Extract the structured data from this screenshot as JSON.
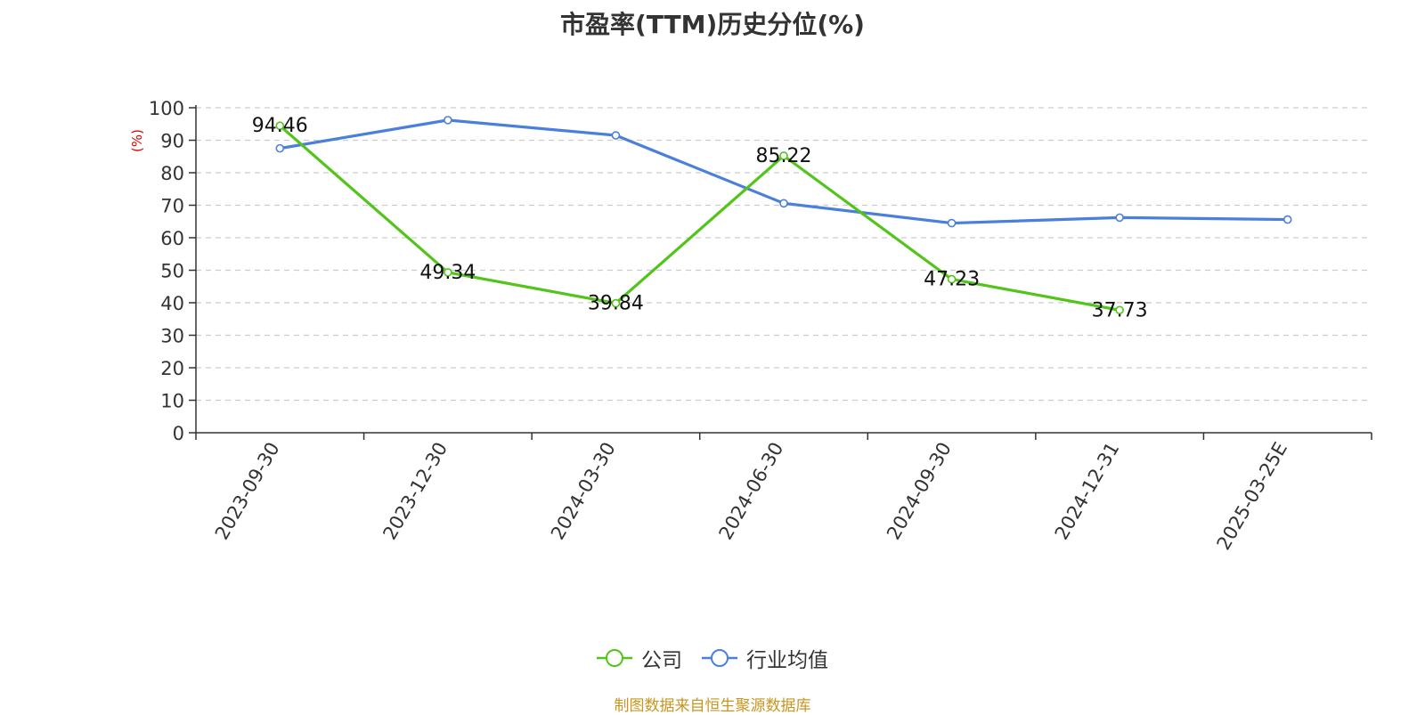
{
  "chart_data": {
    "type": "line",
    "title": "市盈率(TTM)历史分位(%)",
    "ylabel": "(%)",
    "xlabel": "",
    "categories": [
      "2023-09-30",
      "2023-12-30",
      "2024-03-30",
      "2024-06-30",
      "2024-09-30",
      "2024-12-31",
      "2025-03-25E"
    ],
    "ylim": [
      0,
      100
    ],
    "yticks": [
      0,
      10,
      20,
      30,
      40,
      50,
      60,
      70,
      80,
      90,
      100
    ],
    "grid": true,
    "legend_position": "bottom",
    "series": [
      {
        "name": "公司",
        "color": "#52c41a",
        "values": [
          94.46,
          49.34,
          39.84,
          85.22,
          47.23,
          37.73,
          null
        ],
        "labels": [
          "94.46",
          "49.34",
          "39.84",
          "85.22",
          "47.23",
          "37.73",
          null
        ]
      },
      {
        "name": "行业均值",
        "color": "#4a7fdc",
        "values": [
          87.5,
          96.2,
          91.5,
          70.6,
          64.5,
          66.2,
          65.6
        ],
        "labels": null
      }
    ]
  },
  "source_note": "制图数据来自恒生聚源数据库",
  "colors": {
    "axis": "#333333",
    "grid": "#cccccc",
    "ylabel": "#e00000",
    "source": "#c8961e"
  }
}
